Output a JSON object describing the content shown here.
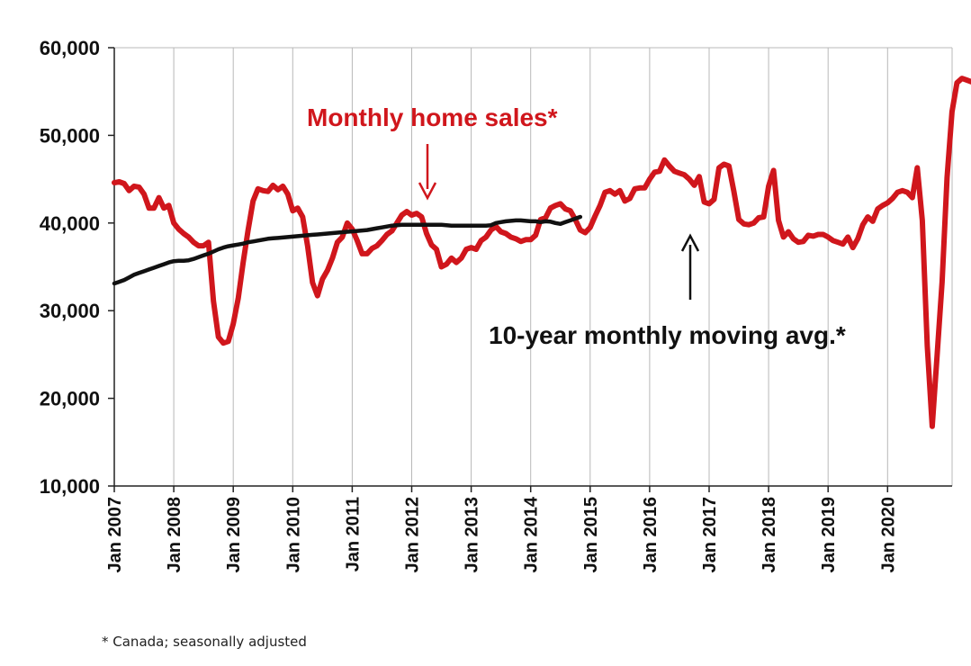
{
  "chart_data": {
    "type": "line",
    "title": "",
    "xlabel": "",
    "ylabel": "",
    "ylim": [
      10000,
      60000
    ],
    "y_ticks": [
      "10,000",
      "20,000",
      "30,000",
      "40,000",
      "50,000",
      "60,000"
    ],
    "x_ticks": [
      "Jan 2007",
      "Jan 2008",
      "Jan 2009",
      "Jan 2010",
      "Jan 2011",
      "Jan 2012",
      "Jan 2013",
      "Jan 2014",
      "Jan 2015",
      "Jan 2016",
      "Jan 2017",
      "Jan 2018",
      "Jan 2019",
      "Jan 2020"
    ],
    "grid": "vertical",
    "start": "Jan 2007",
    "series": [
      {
        "name": "Monthly home sales*",
        "color": "#d0161c",
        "values": [
          44600,
          44700,
          44500,
          43700,
          44200,
          44100,
          43300,
          41700,
          41700,
          42900,
          41700,
          42000,
          40000,
          39300,
          38800,
          38400,
          37800,
          37400,
          37400,
          37800,
          31100,
          27000,
          26300,
          26500,
          28500,
          31400,
          35500,
          39200,
          42500,
          43900,
          43700,
          43600,
          44300,
          43800,
          44200,
          43300,
          41400,
          41700,
          40700,
          37400,
          33200,
          31700,
          33600,
          34600,
          36000,
          37800,
          38400,
          40000,
          39300,
          38000,
          36500,
          36500,
          37100,
          37400,
          38000,
          38700,
          39100,
          40000,
          40900,
          41300,
          40900,
          41100,
          40700,
          38800,
          37500,
          37000,
          35000,
          35300,
          36000,
          35500,
          36000,
          37000,
          37200,
          37000,
          38000,
          38400,
          39200,
          39600,
          39000,
          38800,
          38400,
          38200,
          37900,
          38100,
          38100,
          38600,
          40400,
          40600,
          41700,
          42000,
          42200,
          41600,
          41400,
          40400,
          39200,
          38900,
          39500,
          40800,
          42000,
          43500,
          43700,
          43300,
          43700,
          42500,
          42800,
          43900,
          44000,
          44000,
          45000,
          45800,
          45900,
          47200,
          46500,
          45900,
          45700,
          45500,
          45000,
          44300,
          45300,
          42400,
          42200,
          42700,
          46300,
          46700,
          46500,
          43600,
          40400,
          39900,
          39800,
          40000,
          40600,
          40700,
          44200,
          46000,
          40300,
          38400,
          39000,
          38200,
          37800,
          37900,
          38600,
          38500,
          38700,
          38700,
          38400,
          38000,
          37800,
          37600,
          38400,
          37200,
          38200,
          39800,
          40700,
          40200,
          41600,
          42000,
          42300,
          42800,
          43500,
          43700,
          43500,
          42900,
          46300,
          40300,
          26000,
          16800,
          25000,
          33300,
          45200,
          52700,
          56000,
          56500,
          56300,
          56100
        ]
      },
      {
        "name": "10-year monthly moving avg.*",
        "color": "#111111",
        "values": [
          33100,
          33300,
          33500,
          33800,
          34100,
          34300,
          34500,
          34700,
          34900,
          35100,
          35300,
          35500,
          35650,
          35700,
          35700,
          35750,
          35900,
          36100,
          36300,
          36500,
          36750,
          37000,
          37200,
          37350,
          37450,
          37550,
          37650,
          37800,
          37900,
          38000,
          38100,
          38200,
          38250,
          38300,
          38350,
          38400,
          38450,
          38500,
          38550,
          38600,
          38650,
          38700,
          38750,
          38800,
          38850,
          38900,
          38950,
          39000,
          39050,
          39100,
          39150,
          39200,
          39300,
          39400,
          39500,
          39600,
          39700,
          39750,
          39800,
          39800,
          39800,
          39800,
          39800,
          39800,
          39800,
          39800,
          39800,
          39750,
          39700,
          39700,
          39700,
          39700,
          39700,
          39700,
          39700,
          39700,
          39750,
          40000,
          40100,
          40200,
          40250,
          40300,
          40300,
          40250,
          40200,
          40200,
          40100,
          40200,
          40150,
          40000,
          39900,
          40100,
          40300,
          40500,
          40700
        ]
      }
    ],
    "annotations": {
      "sales_label": "Monthly home sales*",
      "avg_label": "10-year monthly moving avg.*"
    }
  },
  "footnote": "* Canada; seasonally adjusted"
}
